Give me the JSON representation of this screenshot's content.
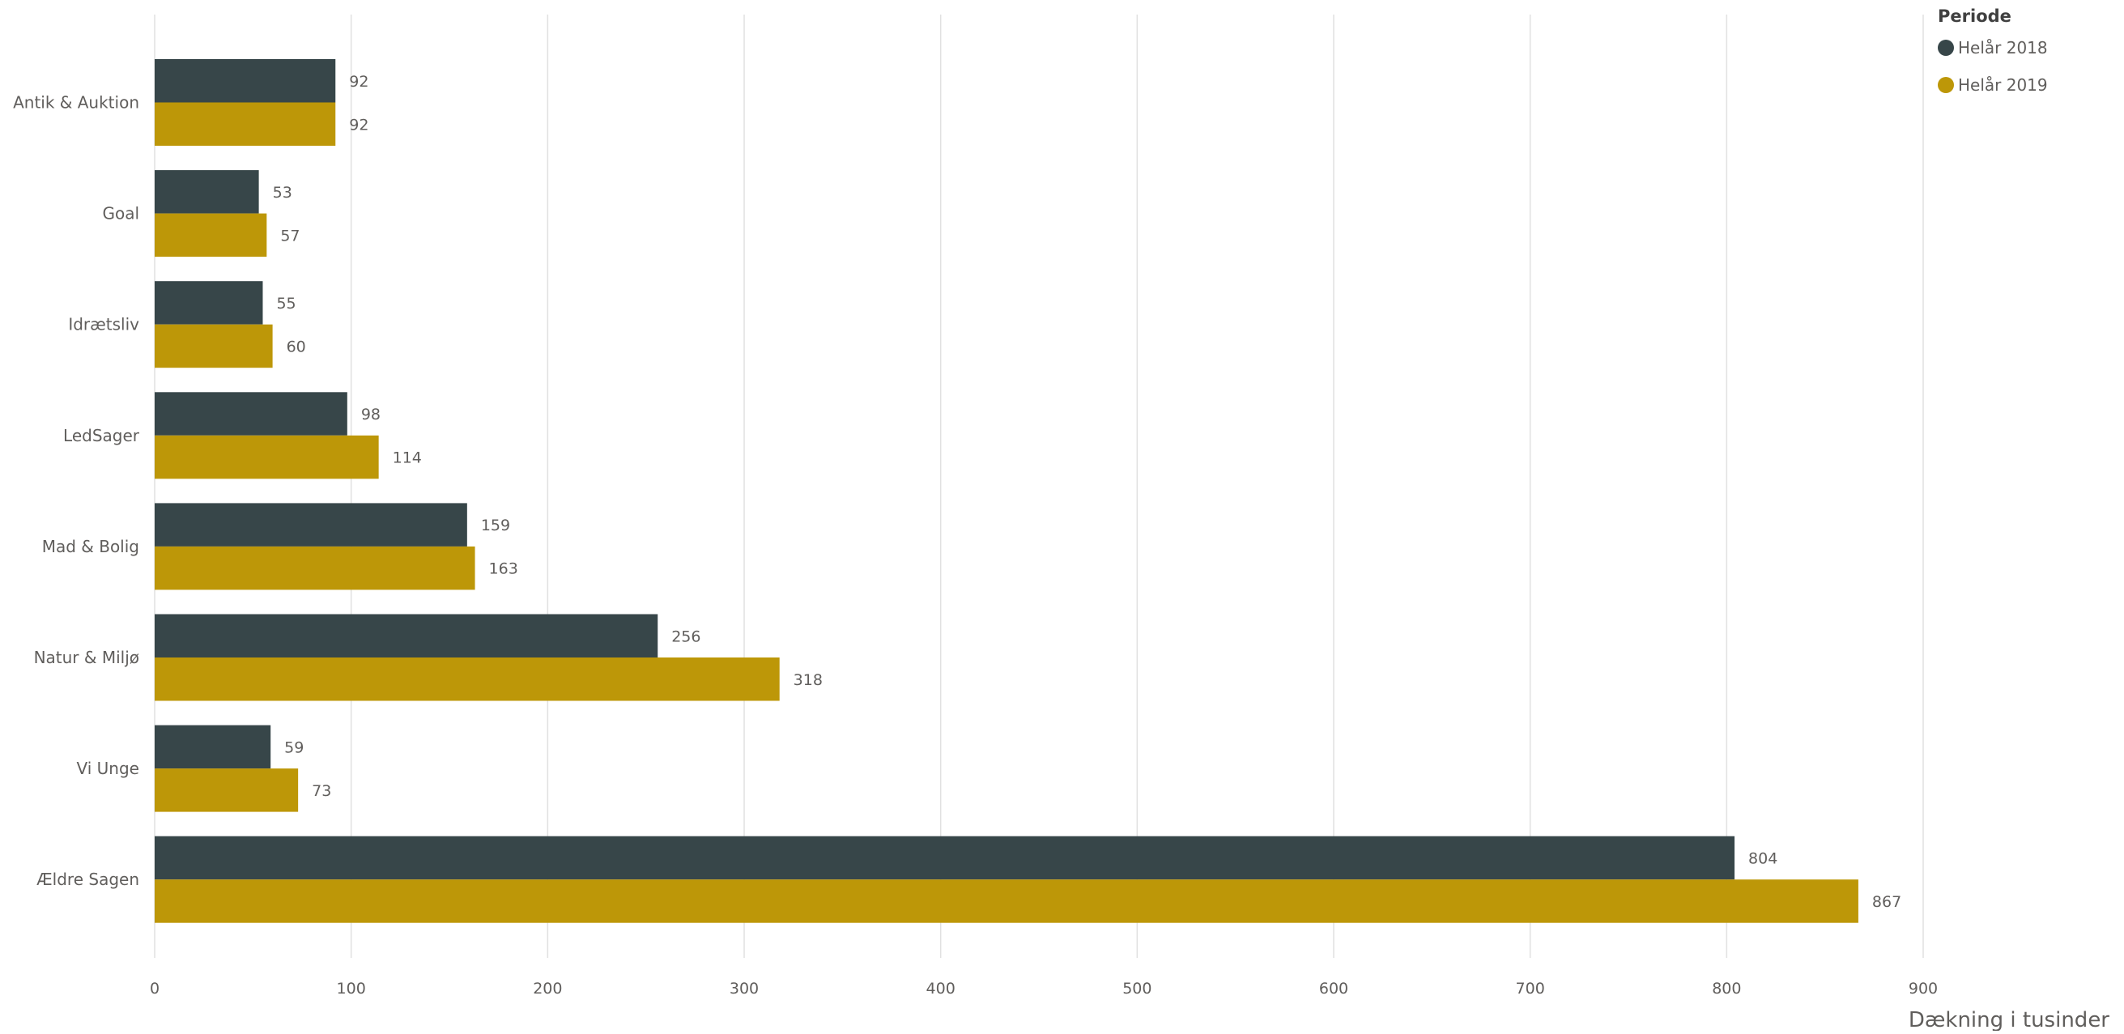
{
  "legend": {
    "title": "Periode",
    "items": [
      {
        "label": "Helår 2018",
        "color": "#374649"
      },
      {
        "label": "Helår 2019",
        "color": "#bd9708"
      }
    ]
  },
  "chart_data": {
    "type": "bar",
    "orientation": "horizontal",
    "categories": [
      "Antik & Auktion",
      "Goal",
      "Idrætsliv",
      "LedSager",
      "Mad & Bolig",
      "Natur & Miljø",
      "Vi Unge",
      "Ældre Sagen"
    ],
    "series": [
      {
        "name": "Helår 2018",
        "color": "#374649",
        "values": [
          92,
          53,
          55,
          98,
          159,
          256,
          59,
          804
        ]
      },
      {
        "name": "Helår 2019",
        "color": "#bd9708",
        "values": [
          92,
          57,
          60,
          114,
          163,
          318,
          73,
          867
        ]
      }
    ],
    "xlabel": "Dækning i tusinder",
    "ylabel": "",
    "xlim": [
      0,
      900
    ],
    "xticks": [
      0,
      100,
      200,
      300,
      400,
      500,
      600,
      700,
      800,
      900
    ],
    "grid": true,
    "data_labels": true,
    "legend_position": "top-right"
  }
}
